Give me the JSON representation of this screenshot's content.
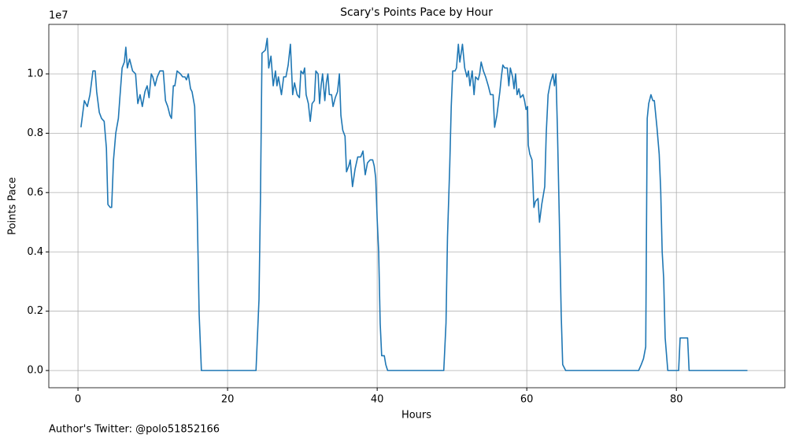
{
  "chart_data": {
    "type": "line",
    "title": "Scary's Points Pace by Hour",
    "x_label": "Hours",
    "y_label": "Points Pace",
    "y_offset_label": "1e7",
    "footnote": "Author's Twitter: @polo51852166",
    "color": "#1f77b4",
    "grid": true,
    "xlim": [
      -3.9,
      94.5
    ],
    "ylim": [
      -0.058,
      1.167
    ],
    "xticks": [
      0,
      20,
      40,
      60,
      80
    ],
    "yticks": [
      {
        "value": 0,
        "label": "0.0"
      },
      0.2,
      0.4,
      0.6,
      0.8,
      {
        "value": 1,
        "label": "1.0"
      }
    ],
    "x": [
      0.4,
      0.85,
      1.25,
      1.6,
      2.0,
      2.3,
      2.5,
      2.85,
      3.15,
      3.5,
      3.8,
      4.0,
      4.3,
      4.5,
      4.75,
      5.05,
      5.4,
      5.6,
      5.9,
      6.2,
      6.4,
      6.6,
      6.9,
      7.3,
      7.7,
      8.0,
      8.3,
      8.6,
      8.95,
      9.25,
      9.5,
      9.8,
      10.0,
      10.3,
      10.6,
      10.95,
      11.4,
      11.7,
      12.0,
      12.3,
      12.5,
      12.75,
      12.95,
      13.25,
      13.7,
      14.0,
      14.3,
      14.5,
      14.75,
      15.05,
      15.25,
      15.6,
      15.9,
      16.2,
      16.5,
      23.8,
      24.2,
      24.4,
      24.6,
      25.05,
      25.3,
      25.5,
      25.8,
      26.1,
      26.4,
      26.6,
      26.8,
      27.2,
      27.5,
      27.8,
      28.1,
      28.4,
      28.7,
      28.95,
      29.3,
      29.6,
      29.8,
      30.1,
      30.3,
      30.5,
      30.8,
      31.05,
      31.3,
      31.6,
      31.8,
      32.1,
      32.3,
      32.5,
      32.7,
      33.0,
      33.2,
      33.4,
      33.6,
      33.9,
      34.1,
      34.4,
      34.7,
      34.95,
      35.15,
      35.4,
      35.7,
      35.9,
      36.2,
      36.4,
      36.7,
      37.05,
      37.4,
      37.6,
      37.8,
      38.1,
      38.4,
      38.7,
      39.05,
      39.4,
      39.6,
      39.8,
      40.0,
      40.2,
      40.4,
      40.6,
      40.95,
      41.15,
      41.4,
      48.9,
      49.2,
      49.4,
      49.7,
      49.9,
      50.1,
      50.4,
      50.6,
      50.85,
      51.05,
      51.4,
      51.7,
      52.0,
      52.2,
      52.4,
      52.7,
      52.95,
      53.15,
      53.5,
      53.7,
      53.9,
      54.2,
      54.5,
      54.85,
      55.15,
      55.5,
      55.7,
      56.0,
      56.2,
      56.4,
      56.6,
      56.8,
      57.05,
      57.4,
      57.6,
      57.8,
      58.1,
      58.3,
      58.5,
      58.7,
      58.95,
      59.15,
      59.5,
      59.7,
      59.9,
      60.1,
      60.2,
      60.4,
      60.7,
      60.95,
      61.15,
      61.5,
      61.7,
      62.0,
      62.2,
      62.4,
      62.6,
      62.85,
      63.15,
      63.5,
      63.7,
      63.9,
      64.1,
      64.4,
      64.6,
      64.8,
      65.2,
      74.95,
      75.3,
      75.6,
      75.9,
      76.1,
      76.3,
      76.6,
      76.85,
      77.05,
      77.4,
      77.7,
      77.9,
      78.1,
      78.3,
      78.5,
      78.85,
      80.3,
      80.5,
      80.9,
      81.5,
      81.7,
      89.5
    ],
    "values": [
      0.82,
      0.91,
      0.89,
      0.93,
      1.01,
      1.01,
      0.94,
      0.87,
      0.85,
      0.84,
      0.75,
      0.56,
      0.55,
      0.55,
      0.71,
      0.8,
      0.85,
      0.92,
      1.02,
      1.04,
      1.09,
      1.02,
      1.05,
      1.01,
      1.0,
      0.9,
      0.93,
      0.89,
      0.94,
      0.96,
      0.92,
      1.0,
      0.99,
      0.96,
      0.99,
      1.01,
      1.01,
      0.91,
      0.89,
      0.86,
      0.85,
      0.96,
      0.96,
      1.01,
      1.0,
      0.99,
      0.99,
      0.98,
      1.0,
      0.95,
      0.94,
      0.89,
      0.59,
      0.19,
      0,
      0,
      0.24,
      0.59,
      1.07,
      1.08,
      1.12,
      1.02,
      1.06,
      0.96,
      1.01,
      0.96,
      0.99,
      0.93,
      0.99,
      0.99,
      1.03,
      1.1,
      0.93,
      0.97,
      0.93,
      0.92,
      1.01,
      1.0,
      1.02,
      0.93,
      0.9,
      0.84,
      0.9,
      0.91,
      1.01,
      1.0,
      0.9,
      0.96,
      1.0,
      0.91,
      0.97,
      1.0,
      0.93,
      0.93,
      0.89,
      0.92,
      0.94,
      1.0,
      0.86,
      0.81,
      0.79,
      0.67,
      0.69,
      0.71,
      0.62,
      0.68,
      0.72,
      0.72,
      0.72,
      0.74,
      0.66,
      0.7,
      0.71,
      0.71,
      0.69,
      0.65,
      0.51,
      0.4,
      0.16,
      0.05,
      0.05,
      0.02,
      0,
      0,
      0.16,
      0.45,
      0.69,
      0.89,
      1.01,
      1.01,
      1.02,
      1.1,
      1.04,
      1.1,
      1.02,
      0.99,
      1.01,
      0.96,
      1.01,
      0.93,
      0.99,
      0.98,
      1.0,
      1.04,
      1.01,
      0.99,
      0.96,
      0.93,
      0.93,
      0.82,
      0.86,
      0.9,
      0.94,
      0.99,
      1.03,
      1.02,
      1.02,
      0.96,
      1.02,
      0.99,
      0.95,
      1.0,
      0.93,
      0.95,
      0.92,
      0.93,
      0.91,
      0.88,
      0.89,
      0.76,
      0.73,
      0.71,
      0.55,
      0.57,
      0.58,
      0.5,
      0.56,
      0.59,
      0.62,
      0.8,
      0.93,
      0.97,
      1.0,
      0.96,
      1.0,
      0.81,
      0.45,
      0.19,
      0.02,
      0,
      0,
      0.02,
      0.04,
      0.08,
      0.85,
      0.9,
      0.93,
      0.91,
      0.91,
      0.82,
      0.73,
      0.61,
      0.4,
      0.31,
      0.11,
      0,
      0,
      0.11,
      0.11,
      0.11,
      0,
      0
    ]
  }
}
